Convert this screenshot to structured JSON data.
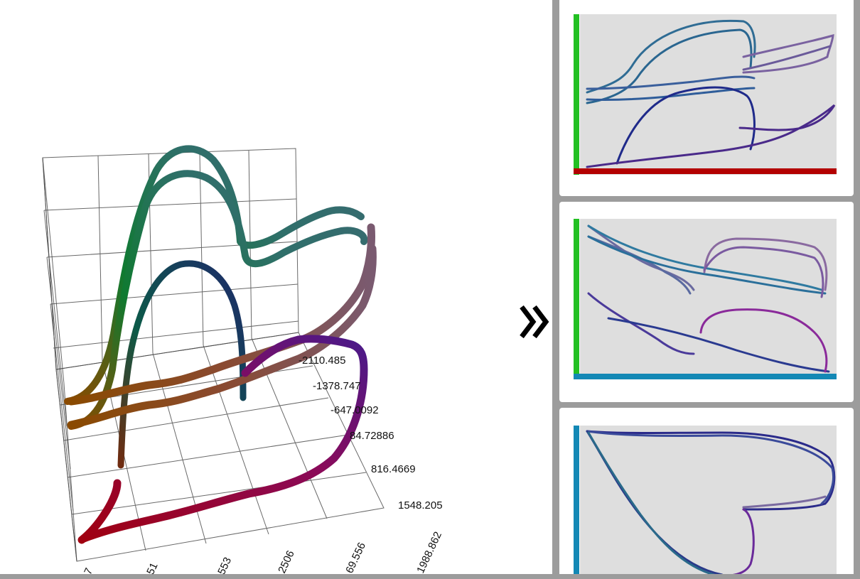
{
  "plot": {
    "tick_labels_axis_a": [
      "-2110.485",
      "-1378.747",
      "-647.0092",
      "84.72886",
      "816.4669",
      "1548.205"
    ],
    "tick_labels_axis_b": [
      "7",
      "51",
      "553",
      "2506",
      "69.556",
      "1988.862"
    ]
  },
  "navigation": {
    "next_icon": "double-chevron-right-icon"
  },
  "projection_cards": [
    {
      "axis_left_color": "#22c022",
      "axis_bottom_color": "#b30000"
    },
    {
      "axis_left_color": "#22c022",
      "axis_bottom_color": "#1388b5"
    },
    {
      "axis_left_color": "#1388b5",
      "axis_bottom_color": ""
    }
  ]
}
